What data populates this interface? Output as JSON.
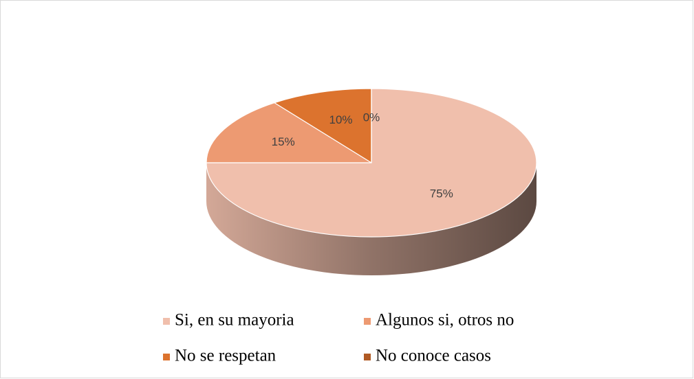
{
  "chart_data": {
    "type": "pie",
    "categories": [
      "Si, en su mayoria",
      "Algunos si, otros no",
      "No se respetan",
      "No conoce casos"
    ],
    "values": [
      75,
      15,
      10,
      0
    ],
    "value_labels": [
      "75%",
      "15%",
      "10%",
      "0%"
    ],
    "colors": [
      "#f0bfac",
      "#ed9a72",
      "#dc732e",
      "#b05a24"
    ],
    "legend": "bottom"
  }
}
